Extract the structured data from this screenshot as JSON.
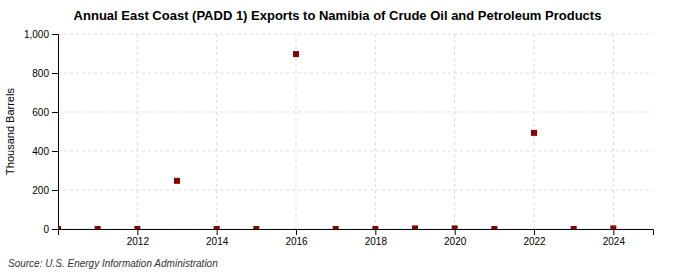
{
  "chart_data": {
    "type": "scatter",
    "title": "Annual East Coast (PADD 1) Exports to Namibia of Crude Oil and Petroleum Products",
    "ylabel": "Thousand Barrels",
    "annotations": [
      "Source: U.S. Energy Information Administration"
    ],
    "x": [
      2010,
      2011,
      2012,
      2013,
      2014,
      2015,
      2016,
      2017,
      2018,
      2019,
      2020,
      2021,
      2022,
      2023,
      2024
    ],
    "values": [
      0,
      0,
      0,
      247,
      0,
      0,
      897,
      0,
      0,
      3,
      3,
      0,
      493,
      0,
      3
    ],
    "color": "#8b0000",
    "marker": "square",
    "xlim": [
      2010,
      2025
    ],
    "ylim": [
      0,
      1000
    ],
    "xticks": [
      2012,
      2014,
      2016,
      2018,
      2020,
      2022,
      2024
    ],
    "yticks": [
      0,
      200,
      400,
      600,
      800,
      {
        "value": 1000,
        "label": "1,000"
      }
    ],
    "grid": true
  }
}
